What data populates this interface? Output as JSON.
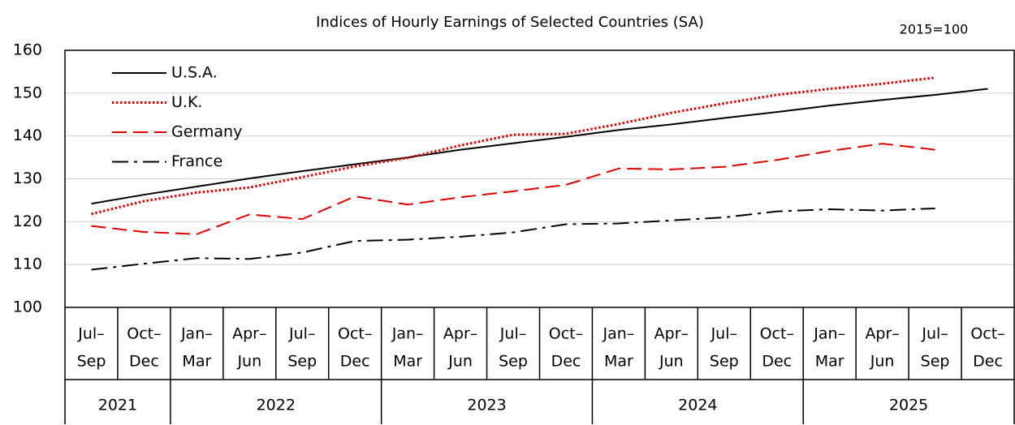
{
  "chart_data": {
    "type": "line",
    "title": "Indices of Hourly Earnings of Selected Countries (SA)",
    "annotation": "2015=100",
    "categories": [
      [
        "Jul–",
        "Sep"
      ],
      [
        "Oct–",
        "Dec"
      ],
      [
        "Jan–",
        "Mar"
      ],
      [
        "Apr–",
        "Jun"
      ],
      [
        "Jul–",
        "Sep"
      ],
      [
        "Oct–",
        "Dec"
      ],
      [
        "Jan–",
        "Mar"
      ],
      [
        "Apr–",
        "Jun"
      ],
      [
        "Jul–",
        "Sep"
      ],
      [
        "Oct–",
        "Dec"
      ],
      [
        "Jan–",
        "Mar"
      ],
      [
        "Apr–",
        "Jun"
      ],
      [
        "Jul–",
        "Sep"
      ],
      [
        "Oct–",
        "Dec"
      ],
      [
        "Jan–",
        "Mar"
      ],
      [
        "Apr–",
        "Jun"
      ],
      [
        "Jul–",
        "Sep"
      ],
      [
        "Oct–",
        "Dec"
      ]
    ],
    "years": [
      "2021",
      "2021",
      "2022",
      "2022",
      "2022",
      "2022",
      "2023",
      "2023",
      "2023",
      "2023",
      "2024",
      "2024",
      "2024",
      "2024",
      "2025",
      "2025",
      "2025",
      "2025"
    ],
    "series": [
      {
        "name": "U.S.A.",
        "color": "#000000",
        "style": "solid",
        "values": [
          124.2,
          126.3,
          128.2,
          130.1,
          131.8,
          133.4,
          135.0,
          136.8,
          138.3,
          139.8,
          141.4,
          142.7,
          144.2,
          145.6,
          147.1,
          148.4,
          149.6,
          151.0
        ]
      },
      {
        "name": "U.K.",
        "color": "#e00000",
        "style": "dotted",
        "values": [
          121.8,
          124.8,
          126.8,
          128.0,
          130.4,
          132.9,
          134.9,
          137.8,
          140.3,
          140.5,
          142.8,
          145.4,
          147.6,
          149.6,
          151.0,
          152.2,
          153.6,
          null
        ]
      },
      {
        "name": "Germany",
        "color": "#e00000",
        "style": "dashed",
        "values": [
          119.0,
          117.6,
          117.1,
          121.7,
          120.6,
          125.9,
          124.0,
          125.7,
          127.1,
          128.6,
          132.4,
          132.2,
          132.8,
          134.4,
          136.5,
          138.2,
          136.8,
          null
        ]
      },
      {
        "name": "France",
        "color": "#000000",
        "style": "dashdot",
        "values": [
          108.8,
          110.2,
          111.5,
          111.3,
          112.8,
          115.5,
          115.8,
          116.5,
          117.5,
          119.4,
          119.6,
          120.3,
          121.0,
          122.4,
          122.9,
          122.6,
          123.1,
          null
        ]
      }
    ],
    "ylim": [
      100,
      160
    ],
    "yticks": [
      100,
      110,
      120,
      130,
      140,
      150,
      160
    ],
    "grid": true,
    "legend": "top-left"
  }
}
